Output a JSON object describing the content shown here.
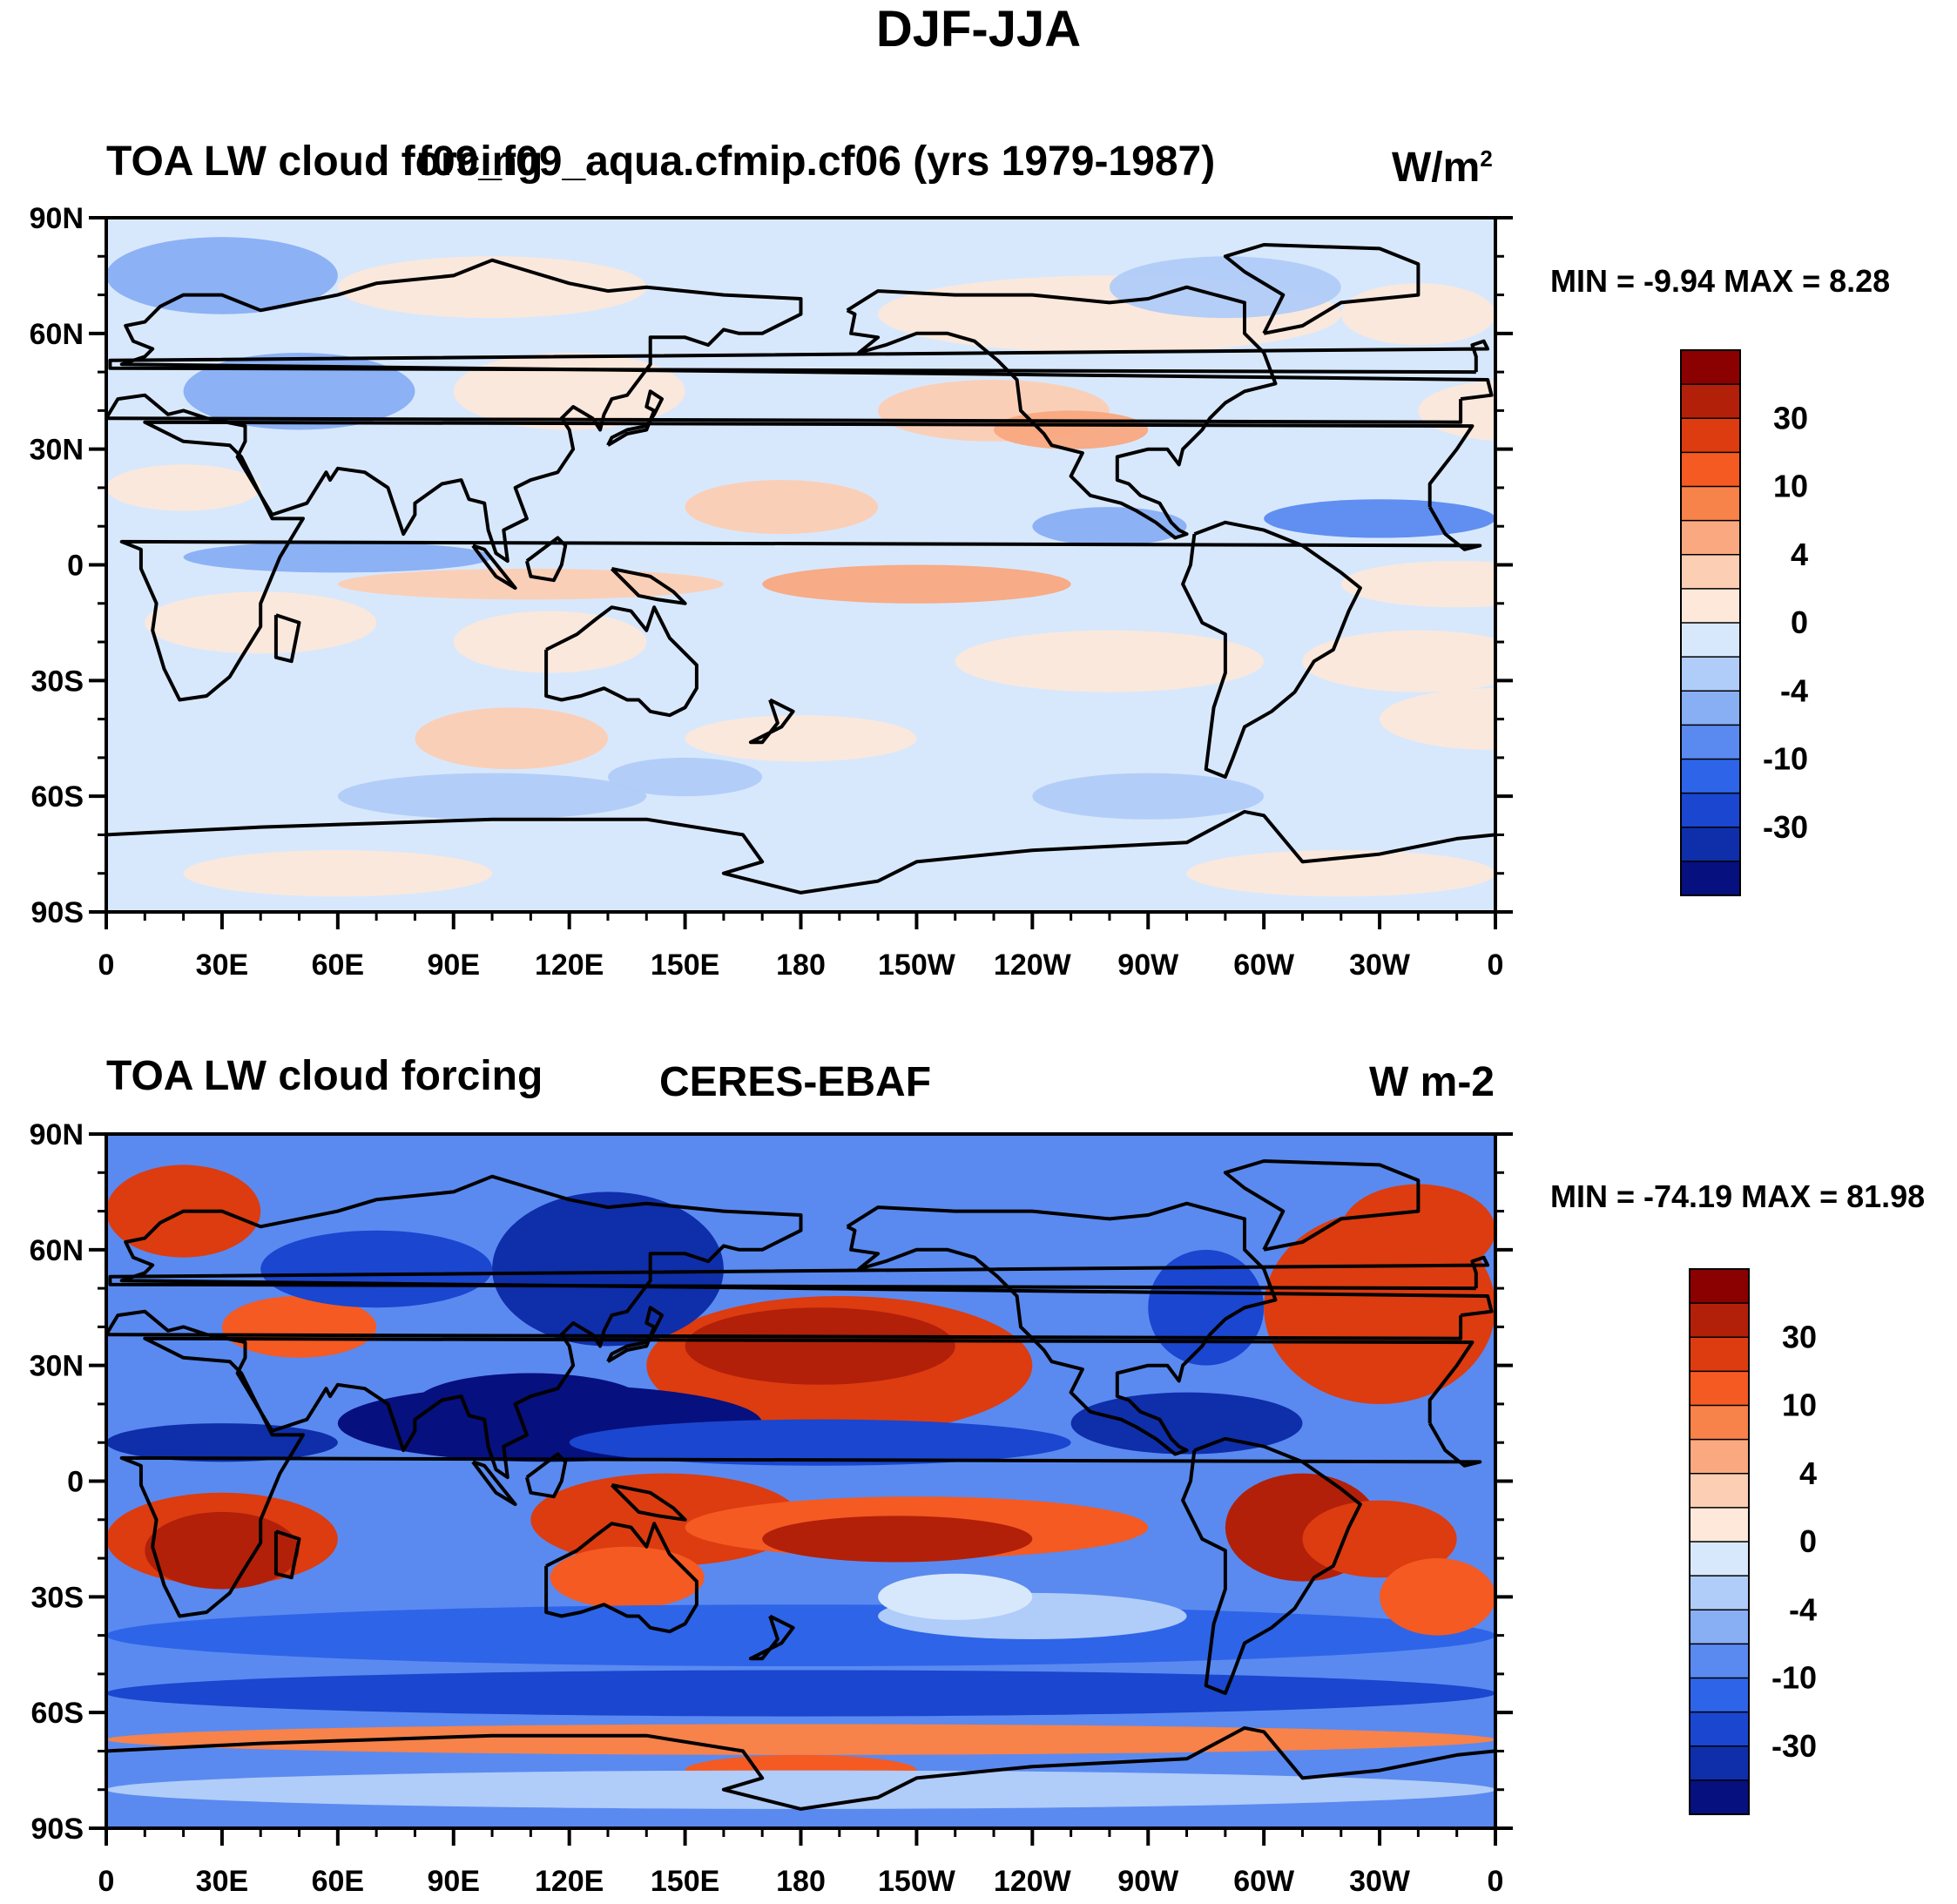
{
  "figure": {
    "title": "DJF-JJA"
  },
  "panels": [
    {
      "id": "model",
      "left_title": "TOA LW cloud forcing",
      "center_title": "f09_f09_aqua.cfmip.cf06 (yrs 1979-1987)",
      "units_base": "W/m",
      "units_exp": "2",
      "stats": "MIN =  -9.94 MAX =   8.28",
      "variant": "weak"
    },
    {
      "id": "obs",
      "left_title": "TOA LW cloud forcing",
      "center_title": "CERES-EBAF",
      "units_base": "W m-2",
      "units_exp": "",
      "stats": "MIN = -74.19 MAX =  81.98",
      "variant": "strong"
    }
  ],
  "axes": {
    "lat_labels": [
      "90N",
      "60N",
      "30N",
      "0",
      "30S",
      "60S",
      "90S"
    ],
    "lon_labels": [
      "0",
      "30E",
      "60E",
      "90E",
      "120E",
      "150E",
      "180",
      "150W",
      "120W",
      "90W",
      "60W",
      "30W",
      "0"
    ]
  },
  "colorbar": {
    "labels": [
      "30",
      "10",
      "4",
      "0",
      "-4",
      "-10",
      "-30"
    ],
    "colors": [
      "#8b0000",
      "#b2200a",
      "#dc3c10",
      "#f45a22",
      "#f7824a",
      "#f9a880",
      "#fcceb4",
      "#fde8da",
      "#d8e8fc",
      "#b0ccf8",
      "#88aef4",
      "#5a8af0",
      "#2e64e8",
      "#1a46d0",
      "#0f2eaa",
      "#06107e"
    ]
  },
  "colors": {
    "land_outline": "#000000"
  }
}
